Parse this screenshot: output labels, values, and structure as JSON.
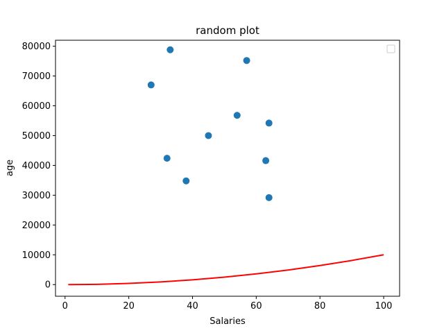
{
  "chart_data": {
    "type": "scatter",
    "title": "random plot",
    "xlabel": "Salaries",
    "ylabel": "age",
    "xlim": [
      -3,
      105
    ],
    "ylim": [
      -3900,
      82000
    ],
    "xticks": [
      0,
      20,
      40,
      60,
      80,
      100
    ],
    "yticks": [
      0,
      10000,
      20000,
      30000,
      40000,
      50000,
      60000,
      70000,
      80000
    ],
    "xtick_labels": [
      "0",
      "20",
      "40",
      "60",
      "80",
      "100"
    ],
    "ytick_labels": [
      "0",
      "10000",
      "20000",
      "30000",
      "40000",
      "50000",
      "60000",
      "70000",
      "80000"
    ],
    "grid": false,
    "legend": {
      "placement": "top-right",
      "entries": []
    },
    "scatter": {
      "color": "#1f77b4",
      "points": [
        {
          "x": 27,
          "y": 67000
        },
        {
          "x": 32,
          "y": 42400
        },
        {
          "x": 33,
          "y": 78800
        },
        {
          "x": 38,
          "y": 34800
        },
        {
          "x": 45,
          "y": 50000
        },
        {
          "x": 54,
          "y": 56800
        },
        {
          "x": 57,
          "y": 75200
        },
        {
          "x": 63,
          "y": 41600
        },
        {
          "x": 64,
          "y": 54200
        },
        {
          "x": 64,
          "y": 29200
        }
      ]
    },
    "curve": {
      "color": "#ff0000",
      "x": [
        1,
        10,
        20,
        30,
        40,
        50,
        60,
        70,
        80,
        90,
        100
      ],
      "y": [
        1,
        100,
        400,
        900,
        1600,
        2500,
        3600,
        4900,
        6400,
        8100,
        10000
      ]
    }
  }
}
